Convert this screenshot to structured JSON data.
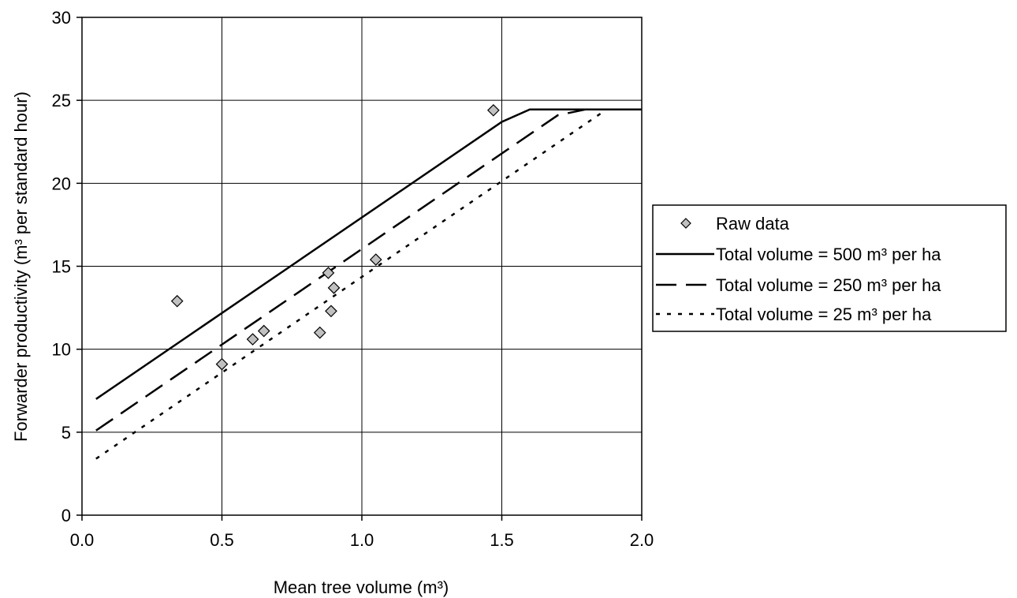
{
  "chart_data": {
    "type": "scatter",
    "title": "",
    "xlabel": "Mean tree volume (m³)",
    "ylabel": "Forwarder productivity (m³ per standard hour)",
    "xlim": [
      0,
      2
    ],
    "ylim": [
      0,
      30
    ],
    "x_ticks": [
      "0.0",
      "0.5",
      "1.0",
      "1.5",
      "2.0"
    ],
    "y_ticks": [
      "0",
      "5",
      "10",
      "15",
      "20",
      "25",
      "30"
    ],
    "x_tick_values": [
      0,
      0.5,
      1.0,
      1.5,
      2.0
    ],
    "y_tick_values": [
      0,
      5,
      10,
      15,
      20,
      25,
      30
    ],
    "grid": true,
    "legend_position": "right",
    "colors": {
      "axis": "#000000",
      "grid": "#000000",
      "marker_fill": "#c0c0c0",
      "marker_stroke": "#000000",
      "line": "#000000"
    },
    "series": [
      {
        "name": "Raw data",
        "kind": "scatter",
        "marker": "diamond",
        "points": [
          [
            0.34,
            12.9
          ],
          [
            0.5,
            9.1
          ],
          [
            0.61,
            10.6
          ],
          [
            0.65,
            11.1
          ],
          [
            0.85,
            11.0
          ],
          [
            0.88,
            14.6
          ],
          [
            0.89,
            12.3
          ],
          [
            0.9,
            13.7
          ],
          [
            1.05,
            15.4
          ],
          [
            1.47,
            24.4
          ]
        ]
      },
      {
        "name": "Total volume = 500 m³ per ha",
        "kind": "line",
        "dash": "solid",
        "points": [
          [
            0.05,
            7.0
          ],
          [
            1.5,
            23.7
          ],
          [
            1.6,
            24.45
          ],
          [
            2.0,
            24.45
          ]
        ]
      },
      {
        "name": "Total volume = 250 m³ per ha",
        "kind": "line",
        "dash": "long-dash",
        "points": [
          [
            0.05,
            5.1
          ],
          [
            1.7,
            24.1
          ],
          [
            1.8,
            24.45
          ],
          [
            2.0,
            24.45
          ]
        ]
      },
      {
        "name": "Total volume = 25 m³ per ha",
        "kind": "line",
        "dash": "dotted",
        "points": [
          [
            0.05,
            3.4
          ],
          [
            1.87,
            24.4
          ]
        ]
      }
    ]
  }
}
